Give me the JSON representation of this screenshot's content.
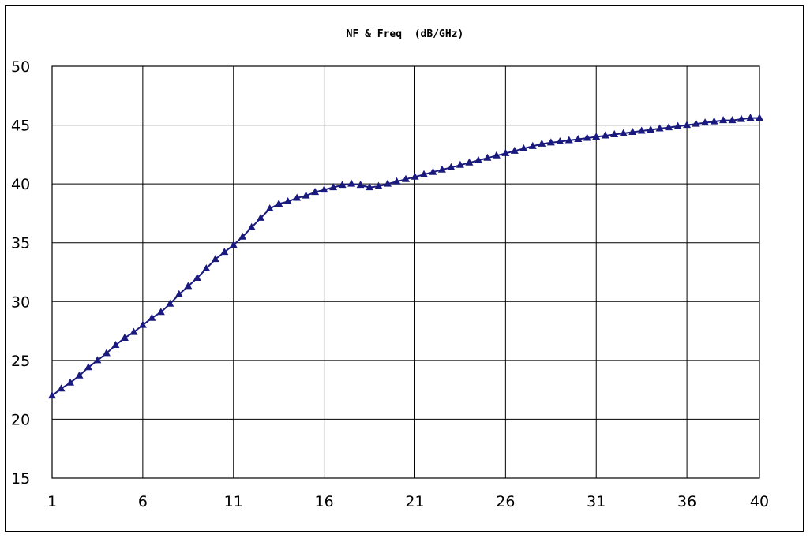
{
  "chart_data": {
    "type": "line",
    "title": "NF & Freq  (dB/GHz)",
    "xlabel": "",
    "ylabel": "",
    "xlim": [
      1,
      40
    ],
    "ylim": [
      15,
      50
    ],
    "xticks": [
      1,
      6,
      11,
      16,
      21,
      26,
      31,
      36,
      40
    ],
    "yticks": [
      15,
      20,
      25,
      30,
      35,
      40,
      45,
      50
    ],
    "grid": true,
    "series": [
      {
        "marker": "triangle",
        "color": "#1a1a7e",
        "x": [
          1.0,
          1.5,
          2.0,
          2.5,
          3.0,
          3.5,
          4.0,
          4.5,
          5.0,
          5.5,
          6.0,
          6.5,
          7.0,
          7.5,
          8.0,
          8.5,
          9.0,
          9.5,
          10.0,
          10.5,
          11.0,
          11.5,
          12.0,
          12.5,
          13.0,
          13.5,
          14.0,
          14.5,
          15.0,
          15.5,
          16.0,
          16.5,
          17.0,
          17.5,
          18.0,
          18.5,
          19.0,
          19.5,
          20.0,
          20.5,
          21.0,
          21.5,
          22.0,
          22.5,
          23.0,
          23.5,
          24.0,
          24.5,
          25.0,
          25.5,
          26.0,
          26.5,
          27.0,
          27.5,
          28.0,
          28.5,
          29.0,
          29.5,
          30.0,
          30.5,
          31.0,
          31.5,
          32.0,
          32.5,
          33.0,
          33.5,
          34.0,
          34.5,
          35.0,
          35.5,
          36.0,
          36.5,
          37.0,
          37.5,
          38.0,
          38.5,
          39.0,
          39.5,
          40.0
        ],
        "y": [
          22.0,
          22.6,
          23.1,
          23.7,
          24.4,
          25.0,
          25.6,
          26.3,
          26.9,
          27.4,
          28.0,
          28.6,
          29.1,
          29.8,
          30.6,
          31.3,
          32.0,
          32.8,
          33.6,
          34.2,
          34.8,
          35.5,
          36.3,
          37.1,
          37.9,
          38.3,
          38.5,
          38.8,
          39.0,
          39.3,
          39.5,
          39.7,
          39.9,
          40.0,
          39.9,
          39.7,
          39.8,
          40.0,
          40.2,
          40.4,
          40.6,
          40.8,
          41.0,
          41.2,
          41.4,
          41.6,
          41.8,
          42.0,
          42.2,
          42.4,
          42.6,
          42.8,
          43.0,
          43.2,
          43.4,
          43.5,
          43.6,
          43.7,
          43.8,
          43.9,
          44.0,
          44.1,
          44.2,
          44.3,
          44.4,
          44.5,
          44.6,
          44.7,
          44.8,
          44.9,
          45.0,
          45.1,
          45.2,
          45.3,
          45.4,
          45.4,
          45.5,
          45.6,
          45.6
        ]
      }
    ]
  }
}
